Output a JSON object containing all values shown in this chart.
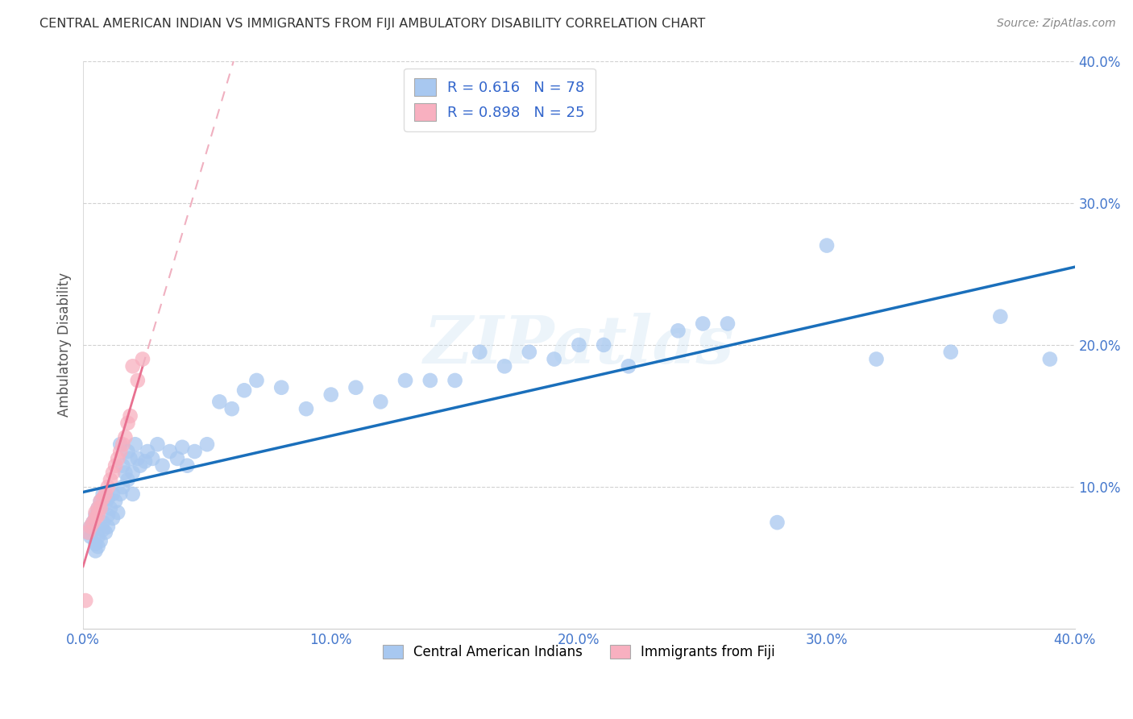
{
  "title": "CENTRAL AMERICAN INDIAN VS IMMIGRANTS FROM FIJI AMBULATORY DISABILITY CORRELATION CHART",
  "source": "Source: ZipAtlas.com",
  "xlabel": "",
  "ylabel": "Ambulatory Disability",
  "xlim": [
    0.0,
    0.4
  ],
  "ylim": [
    0.0,
    0.4
  ],
  "xticks": [
    0.0,
    0.1,
    0.2,
    0.3,
    0.4
  ],
  "yticks": [
    0.0,
    0.1,
    0.2,
    0.3,
    0.4
  ],
  "xticklabels": [
    "0.0%",
    "10.0%",
    "20.0%",
    "30.0%",
    "40.0%"
  ],
  "yticklabels": [
    "",
    "10.0%",
    "20.0%",
    "30.0%",
    "40.0%"
  ],
  "r_blue": 0.616,
  "n_blue": 78,
  "r_pink": 0.898,
  "n_pink": 25,
  "legend_label_blue": "Central American Indians",
  "legend_label_pink": "Immigrants from Fiji",
  "blue_color": "#a8c8f0",
  "pink_color": "#f8b0c0",
  "blue_line_color": "#1a6fbb",
  "pink_line_color": "#e87090",
  "pink_dash_color": "#f0b0c0",
  "watermark_text": "ZIPatlas",
  "background_color": "#ffffff",
  "blue_scatter_x": [
    0.002,
    0.003,
    0.003,
    0.004,
    0.004,
    0.005,
    0.005,
    0.005,
    0.006,
    0.006,
    0.006,
    0.007,
    0.007,
    0.008,
    0.008,
    0.008,
    0.009,
    0.009,
    0.01,
    0.01,
    0.01,
    0.011,
    0.012,
    0.012,
    0.013,
    0.014,
    0.015,
    0.015,
    0.016,
    0.016,
    0.017,
    0.018,
    0.018,
    0.019,
    0.02,
    0.02,
    0.021,
    0.022,
    0.023,
    0.025,
    0.026,
    0.028,
    0.03,
    0.032,
    0.035,
    0.038,
    0.04,
    0.042,
    0.045,
    0.05,
    0.055,
    0.06,
    0.065,
    0.07,
    0.08,
    0.09,
    0.1,
    0.11,
    0.12,
    0.13,
    0.14,
    0.15,
    0.16,
    0.18,
    0.2,
    0.22,
    0.24,
    0.26,
    0.28,
    0.3,
    0.32,
    0.35,
    0.37,
    0.39,
    0.25,
    0.17,
    0.19,
    0.21
  ],
  "blue_scatter_y": [
    0.068,
    0.072,
    0.065,
    0.07,
    0.075,
    0.06,
    0.08,
    0.055,
    0.065,
    0.058,
    0.085,
    0.062,
    0.09,
    0.07,
    0.075,
    0.095,
    0.068,
    0.088,
    0.072,
    0.08,
    0.092,
    0.085,
    0.078,
    0.095,
    0.09,
    0.082,
    0.095,
    0.13,
    0.1,
    0.115,
    0.11,
    0.105,
    0.125,
    0.12,
    0.095,
    0.11,
    0.13,
    0.12,
    0.115,
    0.118,
    0.125,
    0.12,
    0.13,
    0.115,
    0.125,
    0.12,
    0.128,
    0.115,
    0.125,
    0.13,
    0.16,
    0.155,
    0.168,
    0.175,
    0.17,
    0.155,
    0.165,
    0.17,
    0.16,
    0.175,
    0.175,
    0.175,
    0.195,
    0.195,
    0.2,
    0.185,
    0.21,
    0.215,
    0.075,
    0.27,
    0.19,
    0.195,
    0.22,
    0.19,
    0.215,
    0.185,
    0.19,
    0.2
  ],
  "pink_scatter_x": [
    0.002,
    0.003,
    0.004,
    0.005,
    0.005,
    0.006,
    0.006,
    0.007,
    0.007,
    0.008,
    0.009,
    0.01,
    0.011,
    0.012,
    0.013,
    0.014,
    0.015,
    0.016,
    0.017,
    0.018,
    0.019,
    0.02,
    0.022,
    0.024,
    0.001
  ],
  "pink_scatter_y": [
    0.068,
    0.072,
    0.075,
    0.078,
    0.082,
    0.08,
    0.085,
    0.085,
    0.09,
    0.092,
    0.095,
    0.1,
    0.105,
    0.11,
    0.115,
    0.12,
    0.125,
    0.13,
    0.135,
    0.145,
    0.15,
    0.185,
    0.175,
    0.19,
    0.02
  ]
}
